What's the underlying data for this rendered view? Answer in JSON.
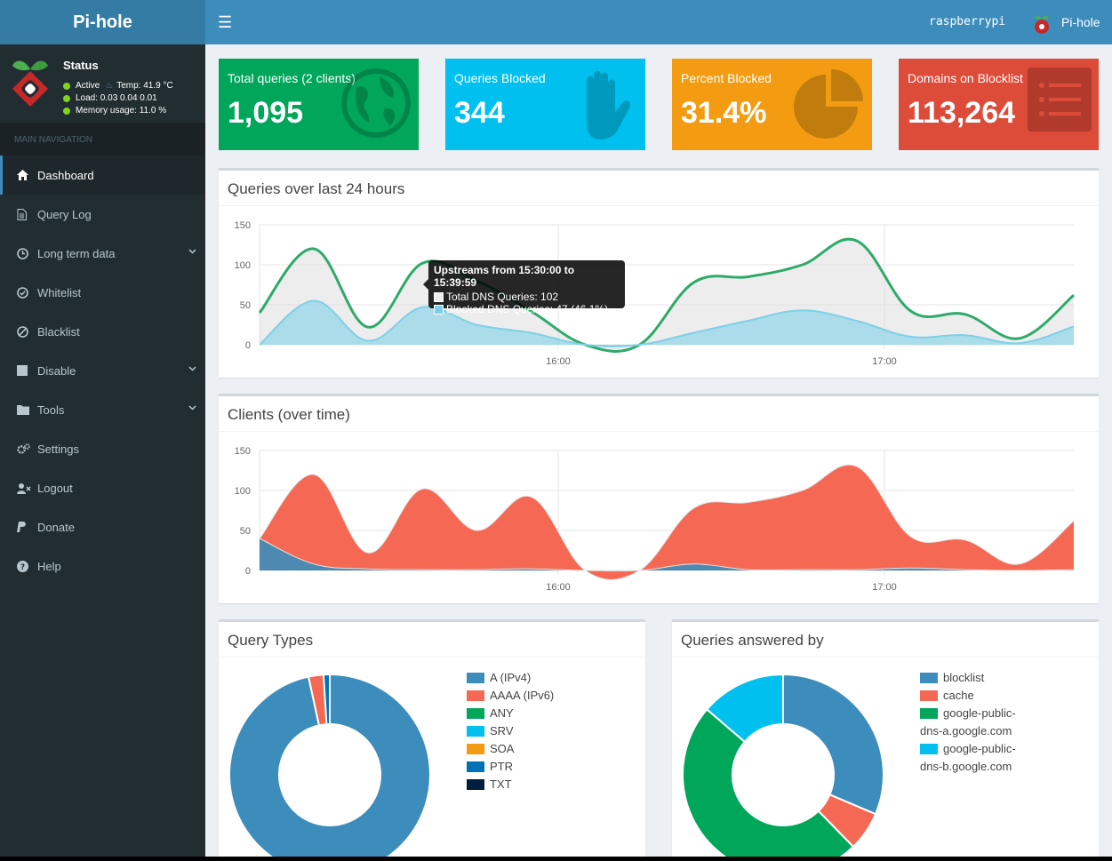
{
  "app": {
    "title": "Pi-hole",
    "hostname": "raspberrypi",
    "user_label": "Pi-hole"
  },
  "status": {
    "title": "Status",
    "active": "Active",
    "temp": "Temp: 41.9 °C",
    "load": "Load:  0.03  0.04  0.01",
    "memory": "Memory usage:  11.0 %"
  },
  "nav": {
    "header": "MAIN NAVIGATION",
    "items": [
      {
        "label": "Dashboard",
        "icon": "home-icon",
        "active": true
      },
      {
        "label": "Query Log",
        "icon": "file-icon"
      },
      {
        "label": "Long term data",
        "icon": "clock-icon",
        "submenu": true
      },
      {
        "label": "Whitelist",
        "icon": "check-circle-icon"
      },
      {
        "label": "Blacklist",
        "icon": "ban-icon"
      },
      {
        "label": "Disable",
        "icon": "stop-icon",
        "submenu": true
      },
      {
        "label": "Tools",
        "icon": "folder-icon",
        "submenu": true
      },
      {
        "label": "Settings",
        "icon": "gears-icon"
      },
      {
        "label": "Logout",
        "icon": "user-times-icon"
      },
      {
        "label": "Donate",
        "icon": "paypal-icon"
      },
      {
        "label": "Help",
        "icon": "question-circle-icon"
      }
    ]
  },
  "stats": [
    {
      "title": "Total queries (2 clients)",
      "value": "1,095",
      "color": "#00a65a",
      "icon": "globe-icon"
    },
    {
      "title": "Queries Blocked",
      "value": "344",
      "color": "#00c0ef",
      "icon": "hand-icon"
    },
    {
      "title": "Percent Blocked",
      "value": "31.4%",
      "color": "#f39c12",
      "icon": "pie-icon"
    },
    {
      "title": "Domains on Blocklist",
      "value": "113,264",
      "color": "#dd4b39",
      "icon": "list-icon"
    }
  ],
  "panels": {
    "queries_title": "Queries over last 24 hours",
    "clients_title": "Clients (over time)",
    "types_title": "Query Types",
    "answered_title": "Queries answered by"
  },
  "tooltip": {
    "title": "Upstreams from 15:30:00 to 15:39:59",
    "total": "Total DNS Queries: 102",
    "blocked": "Blocked DNS Queries: 47 (46.1%)"
  },
  "chart_data": [
    {
      "type": "area",
      "title": "Queries over last 24 hours",
      "ylim": [
        0,
        150
      ],
      "yticks": [
        "0",
        "50",
        "100",
        "150"
      ],
      "xticks": [
        "16:00",
        "17:00"
      ],
      "x": [
        "15:05",
        "15:15",
        "15:25",
        "15:35",
        "15:45",
        "15:55",
        "16:05",
        "16:15",
        "16:25",
        "16:35",
        "16:45",
        "16:55",
        "17:05",
        "17:15",
        "17:25",
        "17:35"
      ],
      "series": [
        {
          "name": "Total DNS Queries",
          "color": "#2eaa6a",
          "values": [
            40,
            120,
            22,
            102,
            80,
            42,
            0,
            0,
            78,
            85,
            100,
            130,
            42,
            38,
            8,
            62
          ]
        },
        {
          "name": "Blocked DNS Queries",
          "color": "#7ed0e8",
          "values": [
            0,
            55,
            5,
            47,
            25,
            15,
            0,
            0,
            15,
            30,
            43,
            30,
            10,
            12,
            2,
            23
          ]
        }
      ]
    },
    {
      "type": "area",
      "title": "Clients (over time)",
      "ylim": [
        0,
        150
      ],
      "yticks": [
        "0",
        "50",
        "100",
        "150"
      ],
      "xticks": [
        "16:00",
        "17:00"
      ],
      "x": [
        "15:05",
        "15:15",
        "15:25",
        "15:35",
        "15:45",
        "15:55",
        "16:05",
        "16:15",
        "16:25",
        "16:35",
        "16:45",
        "16:55",
        "17:05",
        "17:15",
        "17:25",
        "17:35"
      ],
      "series": [
        {
          "color": "#f56954",
          "values": [
            40,
            120,
            22,
            102,
            50,
            92,
            0,
            0,
            78,
            85,
            100,
            130,
            42,
            38,
            8,
            62
          ]
        },
        {
          "color": "#3c8dbc",
          "values": [
            40,
            8,
            2,
            1,
            1,
            2,
            0,
            0,
            8,
            1,
            1,
            1,
            3,
            1,
            0,
            1
          ]
        }
      ]
    },
    {
      "type": "pie",
      "title": "Query Types",
      "categories": [
        "A (IPv4)",
        "AAAA (IPv6)",
        "ANY",
        "SRV",
        "SOA",
        "PTR",
        "TXT"
      ],
      "values": [
        96.6,
        2.4,
        0,
        0,
        0,
        1.0,
        0
      ],
      "colors": [
        "#3c8dbc",
        "#f56954",
        "#00a65a",
        "#00c0ef",
        "#f39c12",
        "#0073b7",
        "#001f3f"
      ]
    },
    {
      "type": "pie",
      "title": "Queries answered by",
      "categories": [
        "blocklist",
        "cache",
        "google-public-dns-a.google.com",
        "google-public-dns-b.google.com"
      ],
      "legend_lines": [
        [
          "blocklist"
        ],
        [
          "cache"
        ],
        [
          "google-public-",
          "dns-a.google.com"
        ],
        [
          "google-public-",
          "dns-b.google.com"
        ]
      ],
      "values": [
        31.4,
        6.3,
        48.6,
        13.7
      ],
      "colors": [
        "#3c8dbc",
        "#f56954",
        "#00a65a",
        "#00c0ef"
      ]
    }
  ]
}
